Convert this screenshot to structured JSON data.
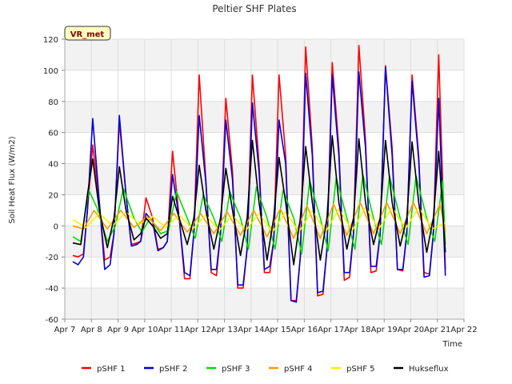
{
  "chart_data": {
    "type": "line",
    "title": "Peltier SHF Plates",
    "xlabel": "Time",
    "ylabel": "Soil Heat Flux (W/m2)",
    "badge": "VR_met",
    "xlim": [
      7,
      22
    ],
    "ylim": [
      -60,
      120
    ],
    "x_ticks": [
      7,
      8,
      9,
      10,
      11,
      12,
      13,
      14,
      15,
      16,
      17,
      18,
      19,
      20,
      21,
      22
    ],
    "x_tick_labels": [
      "Apr 7",
      "Apr 8",
      "Apr 9",
      "Apr 10",
      "Apr 11",
      "Apr 12",
      "Apr 13",
      "Apr 14",
      "Apr 15",
      "Apr 16",
      "Apr 17",
      "Apr 18",
      "Apr 19",
      "Apr 20",
      "Apr 21",
      "Apr 22"
    ],
    "y_ticks": [
      -60,
      -40,
      -20,
      0,
      20,
      40,
      60,
      80,
      100,
      120
    ],
    "y_tick_labels": [
      "-60",
      "-40",
      "-20",
      "0",
      "20",
      "40",
      "60",
      "80",
      "100",
      "120"
    ],
    "grid": true,
    "legend_position": "bottom",
    "x_unit": "day of April",
    "series": [
      {
        "name": "pSHF 1",
        "color": "#ff0000",
        "x": [
          7.3,
          7.5,
          7.7,
          7.85,
          8.05,
          8.3,
          8.5,
          8.7,
          8.85,
          9.05,
          9.3,
          9.5,
          9.7,
          9.85,
          10.05,
          10.3,
          10.5,
          10.7,
          10.85,
          11.05,
          11.3,
          11.5,
          11.7,
          11.85,
          12.05,
          12.3,
          12.5,
          12.7,
          12.85,
          13.05,
          13.3,
          13.5,
          13.7,
          13.85,
          14.05,
          14.3,
          14.5,
          14.7,
          14.85,
          15.05,
          15.3,
          15.5,
          15.7,
          15.85,
          16.05,
          16.3,
          16.5,
          16.7,
          16.85,
          17.05,
          17.3,
          17.5,
          17.7,
          17.85,
          18.05,
          18.3,
          18.5,
          18.7,
          18.85,
          19.05,
          19.3,
          19.5,
          19.7,
          19.85,
          20.05,
          20.3,
          20.5,
          20.7,
          20.85,
          21.05,
          21.3
        ],
        "y": [
          -19,
          -20,
          -18,
          10,
          52,
          15,
          -22,
          -20,
          -5,
          67,
          20,
          -12,
          -11,
          -10,
          18,
          5,
          -15,
          -14,
          -10,
          48,
          5,
          -34,
          -34,
          -5,
          97,
          30,
          -30,
          -32,
          -5,
          82,
          35,
          -40,
          -40,
          -15,
          97,
          40,
          -30,
          -30,
          -10,
          97,
          45,
          -48,
          -48,
          -20,
          115,
          50,
          -45,
          -44,
          -15,
          105,
          50,
          -35,
          -33,
          -5,
          116,
          55,
          -30,
          -29,
          -5,
          103,
          50,
          -28,
          -29,
          -5,
          97,
          45,
          -30,
          -31,
          -5,
          110,
          -28
        ]
      },
      {
        "name": "pSHF 2",
        "color": "#0000dd",
        "x": [
          7.3,
          7.5,
          7.7,
          7.85,
          8.05,
          8.3,
          8.5,
          8.7,
          8.85,
          9.05,
          9.3,
          9.5,
          9.7,
          9.85,
          10.05,
          10.3,
          10.5,
          10.7,
          10.85,
          11.05,
          11.3,
          11.5,
          11.7,
          11.85,
          12.05,
          12.3,
          12.5,
          12.7,
          12.85,
          13.05,
          13.3,
          13.5,
          13.7,
          13.85,
          14.05,
          14.3,
          14.5,
          14.7,
          14.85,
          15.05,
          15.3,
          15.5,
          15.7,
          15.85,
          16.05,
          16.3,
          16.5,
          16.7,
          16.85,
          17.05,
          17.3,
          17.5,
          17.7,
          17.85,
          18.05,
          18.3,
          18.5,
          18.7,
          18.85,
          19.05,
          19.3,
          19.5,
          19.7,
          19.85,
          20.05,
          20.3,
          20.5,
          20.7,
          20.85,
          21.05,
          21.3
        ],
        "y": [
          -23,
          -25,
          -20,
          10,
          69,
          15,
          -28,
          -25,
          -5,
          71,
          20,
          -13,
          -12,
          -10,
          8,
          3,
          -16,
          -14,
          -10,
          33,
          5,
          -30,
          -32,
          -5,
          71,
          28,
          -28,
          -28,
          -5,
          68,
          30,
          -38,
          -38,
          -15,
          79,
          35,
          -28,
          -26,
          -10,
          68,
          40,
          -48,
          -49,
          -20,
          98,
          45,
          -43,
          -42,
          -15,
          97,
          45,
          -30,
          -30,
          -5,
          99,
          50,
          -26,
          -26,
          -5,
          102,
          45,
          -28,
          -28,
          -5,
          93,
          42,
          -33,
          -32,
          -5,
          82,
          -32
        ]
      },
      {
        "name": "pSHF 3",
        "color": "#00dd00",
        "x": [
          7.3,
          7.6,
          7.9,
          8.2,
          8.6,
          8.9,
          9.2,
          9.6,
          9.9,
          10.2,
          10.6,
          10.9,
          11.2,
          11.6,
          11.9,
          12.2,
          12.6,
          12.9,
          13.2,
          13.6,
          13.9,
          14.2,
          14.6,
          14.9,
          15.2,
          15.6,
          15.9,
          16.2,
          16.6,
          16.9,
          17.2,
          17.6,
          17.9,
          18.2,
          18.6,
          18.9,
          19.2,
          19.6,
          19.9,
          20.2,
          20.6,
          20.9,
          21.2,
          21.3
        ],
        "y": [
          -7,
          -10,
          23,
          12,
          -10,
          0,
          24,
          5,
          -4,
          5,
          -5,
          -3,
          22,
          5,
          -8,
          20,
          5,
          -10,
          22,
          5,
          -15,
          25,
          5,
          -15,
          23,
          5,
          -18,
          29,
          5,
          -16,
          31,
          5,
          -15,
          33,
          5,
          -12,
          32,
          5,
          -12,
          32,
          5,
          -10,
          29,
          -12
        ]
      },
      {
        "name": "pSHF 4",
        "color": "#ff9900",
        "x": [
          7.3,
          7.7,
          8.1,
          8.6,
          9.1,
          9.6,
          10.1,
          10.6,
          11.1,
          11.6,
          12.1,
          12.6,
          13.1,
          13.6,
          14.1,
          14.6,
          15.1,
          15.6,
          16.1,
          16.6,
          17.1,
          17.6,
          18.1,
          18.6,
          19.1,
          19.6,
          20.1,
          20.6,
          21.1,
          21.3
        ],
        "y": [
          0,
          -2,
          10,
          -2,
          10,
          -1,
          6,
          -3,
          8,
          -4,
          8,
          -5,
          9,
          -6,
          10,
          -7,
          11,
          -8,
          13,
          -8,
          14,
          -6,
          15,
          -5,
          15,
          -5,
          15,
          -5,
          14,
          -3
        ]
      },
      {
        "name": "pSHF 5",
        "color": "#ffee00",
        "x": [
          7.3,
          7.8,
          8.3,
          8.8,
          9.3,
          9.8,
          10.3,
          10.8,
          11.3,
          11.8,
          12.3,
          12.8,
          13.3,
          13.8,
          14.3,
          14.8,
          15.3,
          15.8,
          16.3,
          16.8,
          17.3,
          17.8,
          18.3,
          18.8,
          19.3,
          19.8,
          20.3,
          20.8,
          21.3
        ],
        "y": [
          4,
          -1,
          8,
          0,
          9,
          1,
          6,
          -1,
          7,
          -2,
          7,
          -3,
          7,
          -3,
          8,
          -4,
          9,
          -4,
          10,
          -4,
          11,
          -3,
          12,
          -2,
          12,
          -2,
          12,
          -2,
          2
        ]
      },
      {
        "name": "Hukseflux",
        "color": "#000000",
        "x": [
          7.3,
          7.6,
          7.85,
          8.05,
          8.3,
          8.6,
          8.85,
          9.05,
          9.3,
          9.6,
          9.85,
          10.05,
          10.3,
          10.6,
          10.85,
          11.05,
          11.3,
          11.6,
          11.85,
          12.05,
          12.3,
          12.6,
          12.85,
          13.05,
          13.3,
          13.6,
          13.85,
          14.05,
          14.3,
          14.6,
          14.85,
          15.05,
          15.3,
          15.6,
          15.85,
          16.05,
          16.3,
          16.6,
          16.85,
          17.05,
          17.3,
          17.6,
          17.85,
          18.05,
          18.3,
          18.6,
          18.85,
          19.05,
          19.3,
          19.6,
          19.85,
          20.05,
          20.3,
          20.6,
          20.85,
          21.05,
          21.3
        ],
        "y": [
          -11,
          -12,
          20,
          43,
          10,
          -14,
          5,
          38,
          10,
          -9,
          -5,
          5,
          0,
          -8,
          -5,
          19,
          5,
          -12,
          5,
          39,
          10,
          -15,
          5,
          37,
          10,
          -19,
          5,
          55,
          15,
          -22,
          5,
          44,
          15,
          -25,
          5,
          51,
          15,
          -22,
          5,
          58,
          15,
          -15,
          5,
          56,
          15,
          -12,
          5,
          55,
          15,
          -13,
          5,
          54,
          15,
          -17,
          5,
          48,
          -17
        ]
      }
    ]
  }
}
